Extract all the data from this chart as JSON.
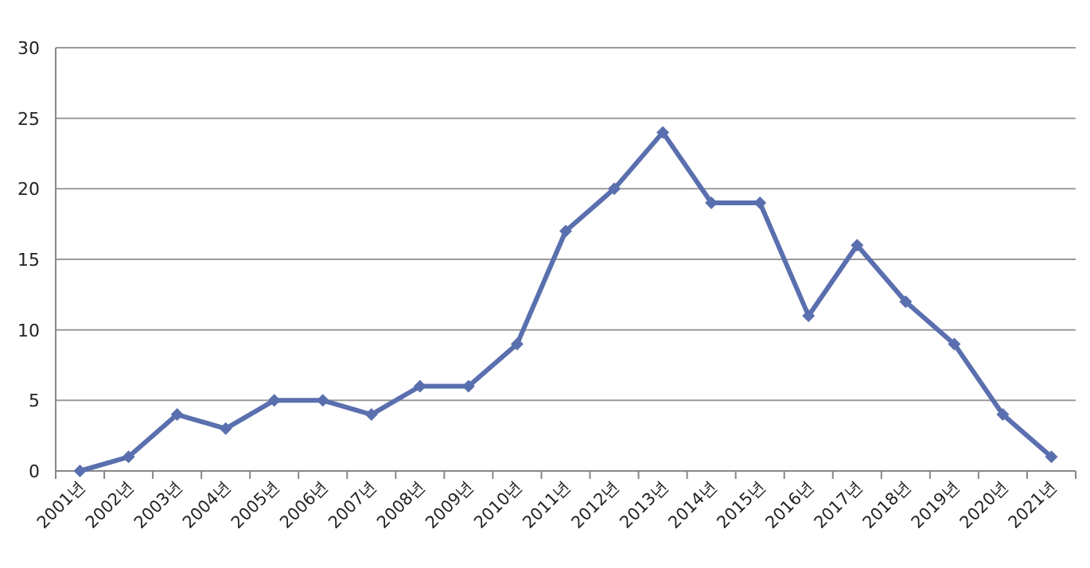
{
  "chart_data": {
    "type": "line",
    "categories": [
      "2001년",
      "2002년",
      "2003년",
      "2004년",
      "2005년",
      "2006년",
      "2007년",
      "2008년",
      "2009년",
      "2010년",
      "2011년",
      "2012년",
      "2013년",
      "2014년",
      "2015년",
      "2016년",
      "2017년",
      "2018년",
      "2019년",
      "2020년",
      "2021년"
    ],
    "series": [
      {
        "color": "#5a6fae",
        "values": [
          0,
          1,
          4,
          3,
          5,
          5,
          4,
          6,
          6,
          9,
          17,
          20,
          24,
          19,
          19,
          11,
          16,
          12,
          9,
          4,
          1
        ]
      }
    ],
    "ylim": [
      0,
      30
    ],
    "yticks": [
      0,
      5,
      10,
      15,
      20,
      25,
      30
    ],
    "grid": "y",
    "marker": "diamond"
  }
}
